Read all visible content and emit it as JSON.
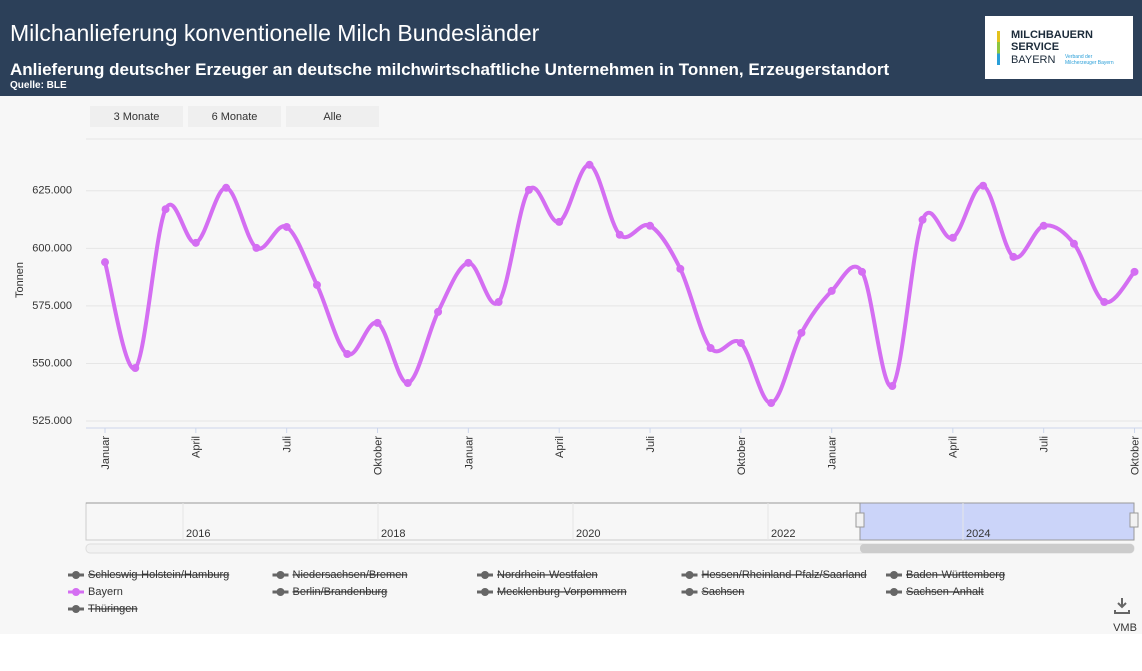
{
  "header": {
    "title": "Milchanlieferung konventionelle Milch Bundesländer",
    "subtitle": "Anlieferung deutscher Erzeuger an deutsche milchwirtschaftliche Unternehmen in Tonnen, Erzeugerstandort",
    "source": "Quelle: BLE",
    "logo": {
      "line1": "MILCHBAUERN",
      "line2": "SERVICE",
      "line3": "BAYERN",
      "tagline": "Verband der Milcherzeuger Bayern"
    }
  },
  "range_buttons": [
    "3 Monate",
    "6 Monate",
    "Alle"
  ],
  "chart_data": {
    "type": "line",
    "y_label": "Tonnen",
    "categories": [
      "Januar",
      null,
      null,
      "April",
      null,
      null,
      "Juli",
      null,
      null,
      "Oktober",
      null,
      null,
      "Januar",
      null,
      null,
      "April",
      null,
      null,
      "Juli",
      null,
      null,
      "Oktober",
      null,
      null,
      "Januar",
      null,
      null,
      null,
      "April",
      null,
      null,
      "Juli",
      null,
      null,
      "Oktober"
    ],
    "series": [
      {
        "name": "Schleswig-Holstein/Hamburg",
        "color": "#666666",
        "visible": false
      },
      {
        "name": "Niedersachsen/Bremen",
        "color": "#666666",
        "visible": false
      },
      {
        "name": "Nordrhein-Westfalen",
        "color": "#666666",
        "visible": false
      },
      {
        "name": "Hessen/Rheinland-Pfalz/Saarland",
        "color": "#666666",
        "visible": false
      },
      {
        "name": "Baden-Württemberg",
        "color": "#666666",
        "visible": false
      },
      {
        "name": "Bayern",
        "color": "#d46ef2",
        "visible": true,
        "values": [
          594000,
          548000,
          617000,
          602400,
          626300,
          600200,
          609300,
          584100,
          554100,
          567600,
          541500,
          572400,
          593700,
          576700,
          625400,
          611500,
          636300,
          605900,
          609800,
          591100,
          556700,
          558900,
          532800,
          563300,
          581500,
          589800,
          540200,
          612400,
          604600,
          627200,
          596300,
          609800,
          602000,
          576700,
          589800
        ]
      },
      {
        "name": "Berlin/Brandenburg",
        "color": "#666666",
        "visible": false
      },
      {
        "name": "Mecklenburg-Vorpommern",
        "color": "#666666",
        "visible": false
      },
      {
        "name": "Sachsen",
        "color": "#666666",
        "visible": false
      },
      {
        "name": "Sachsen-Anhalt",
        "color": "#666666",
        "visible": false
      },
      {
        "name": "Thüringen",
        "color": "#666666",
        "visible": false
      }
    ],
    "ylim": [
      525000,
      647500
    ],
    "yticks": [
      {
        "value": 525000,
        "label": "525.000"
      },
      {
        "value": 550000,
        "label": "550.000"
      },
      {
        "value": 575000,
        "label": "575.000"
      },
      {
        "value": 600000,
        "label": "600.000"
      },
      {
        "value": 625000,
        "label": "625.000"
      }
    ],
    "grid": true,
    "smooth": true
  },
  "navigator": {
    "years": [
      "2016",
      "2018",
      "2020",
      "2022",
      "2024"
    ]
  },
  "credit": "VMB"
}
